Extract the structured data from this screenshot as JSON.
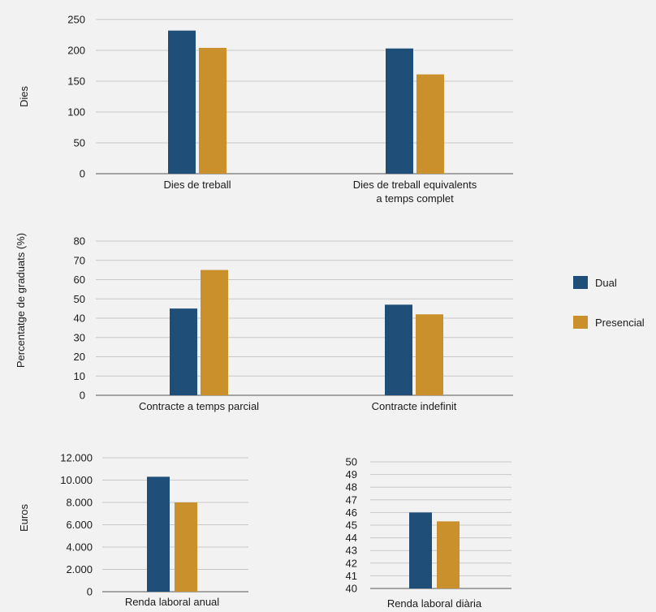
{
  "colors": {
    "dual": "#1f4e79",
    "presencial": "#c9902c",
    "background": "#f2f2f2"
  },
  "legend": {
    "placement": "right",
    "items": [
      {
        "label": "Dual",
        "color": "#1f4e79"
      },
      {
        "label": "Presencial",
        "color": "#c9902c"
      }
    ]
  },
  "chart_data": [
    {
      "id": "days",
      "type": "bar",
      "ylabel": "Dies",
      "ylim": [
        0,
        250
      ],
      "yticks": [
        "0",
        "50",
        "100",
        "150",
        "200",
        "250"
      ],
      "ytick_values": [
        0,
        50,
        100,
        150,
        200,
        250
      ],
      "grid": true,
      "categories": [
        [
          "Dies de treball"
        ],
        [
          "Dies de treball equivalents",
          "a temps complet"
        ]
      ],
      "series": [
        {
          "name": "Dual",
          "values": [
            232,
            203
          ]
        },
        {
          "name": "Presencial",
          "values": [
            204,
            161
          ]
        }
      ]
    },
    {
      "id": "contracts",
      "type": "bar",
      "ylabel": "Percentatge de graduats (%)",
      "ylim": [
        0,
        80
      ],
      "yticks": [
        "0",
        "10",
        "20",
        "30",
        "40",
        "50",
        "60",
        "70",
        "80"
      ],
      "ytick_values": [
        0,
        10,
        20,
        30,
        40,
        50,
        60,
        70,
        80
      ],
      "grid": true,
      "categories": [
        [
          "Contracte a temps parcial"
        ],
        [
          "Contracte indefinit"
        ]
      ],
      "series": [
        {
          "name": "Dual",
          "values": [
            45,
            47
          ]
        },
        {
          "name": "Presencial",
          "values": [
            65,
            42
          ]
        }
      ]
    },
    {
      "id": "annual",
      "type": "bar",
      "ylabel": "Euros",
      "ylim": [
        0,
        12000
      ],
      "yticks": [
        "0",
        "2.000",
        "4.000",
        "6.000",
        "8.000",
        "10.000",
        "12.000"
      ],
      "ytick_values": [
        0,
        2000,
        4000,
        6000,
        8000,
        10000,
        12000
      ],
      "grid": true,
      "categories": [
        [
          "Renda laboral anual"
        ]
      ],
      "series": [
        {
          "name": "Dual",
          "values": [
            10300
          ]
        },
        {
          "name": "Presencial",
          "values": [
            8000
          ]
        }
      ]
    },
    {
      "id": "daily",
      "type": "bar",
      "ylabel": "",
      "ylim": [
        40,
        50
      ],
      "yticks": [
        "40",
        "41",
        "42",
        "43",
        "44",
        "45",
        "46",
        "47",
        "48",
        "49",
        "50"
      ],
      "ytick_values": [
        40,
        41,
        42,
        43,
        44,
        45,
        46,
        47,
        48,
        49,
        50
      ],
      "grid": true,
      "categories": [
        [
          "Renda laboral diària"
        ]
      ],
      "series": [
        {
          "name": "Dual",
          "values": [
            46
          ]
        },
        {
          "name": "Presencial",
          "values": [
            45.3
          ]
        }
      ]
    }
  ]
}
